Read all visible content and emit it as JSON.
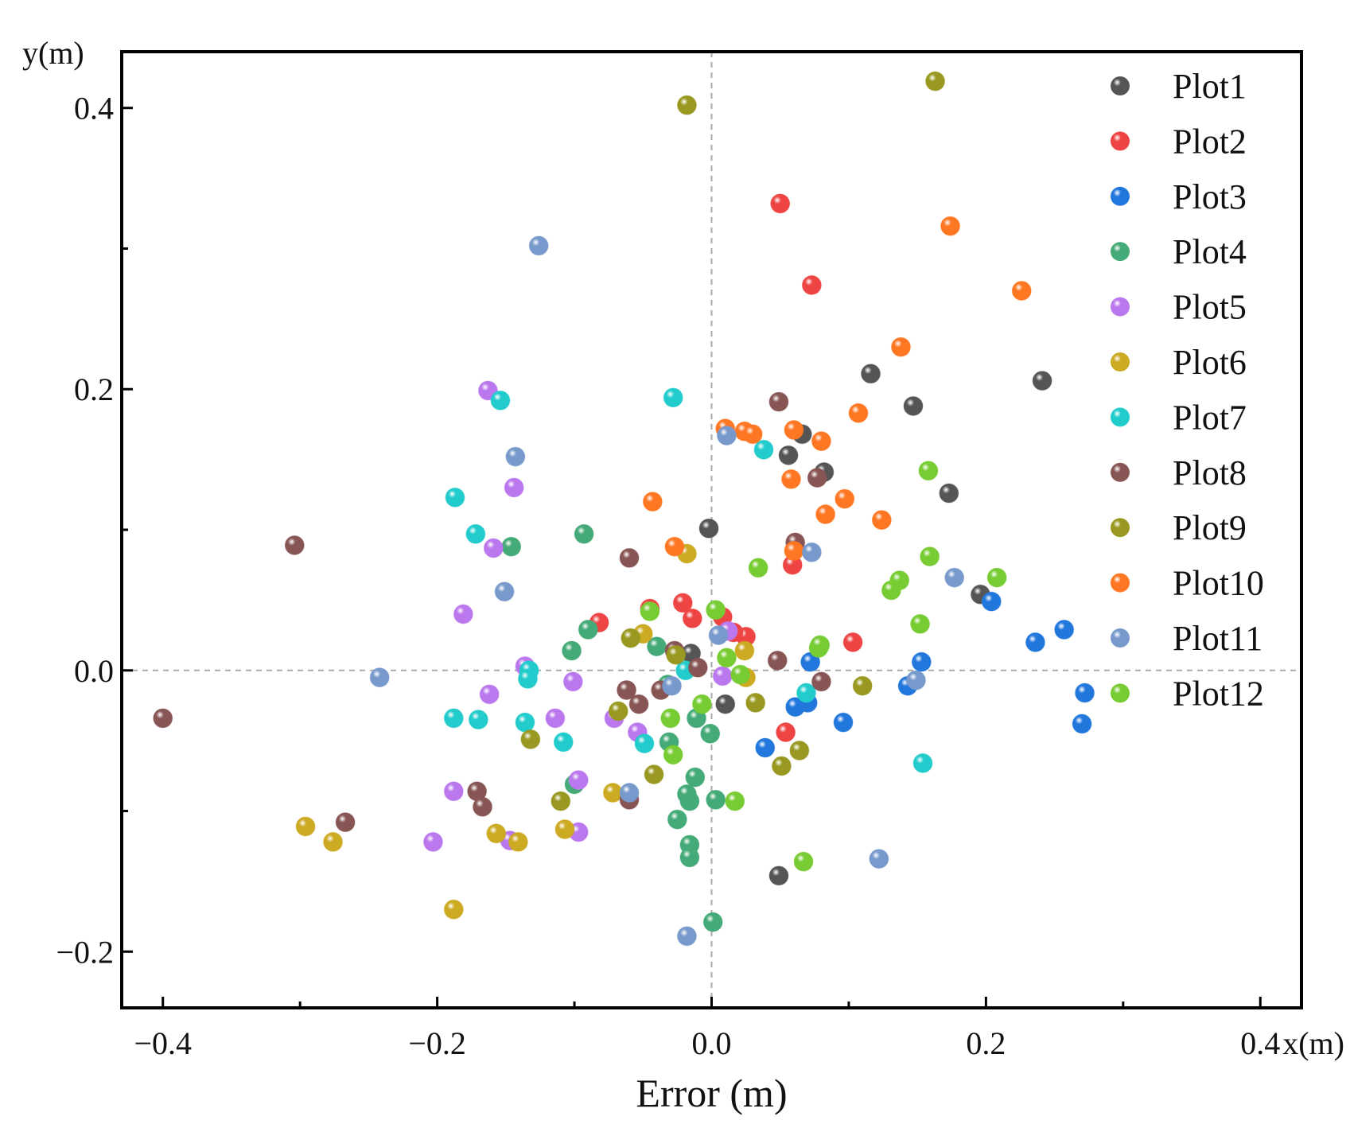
{
  "chart_data": {
    "type": "scatter",
    "title": "",
    "xlabel": "Error (m)",
    "ylabel": "",
    "x_unit_label": "x(m)",
    "y_unit_label": "y(m)",
    "xlim": [
      -0.43,
      0.43
    ],
    "ylim": [
      -0.24,
      0.44
    ],
    "x_ticks": [
      -0.4,
      -0.2,
      0.0,
      0.2,
      0.4
    ],
    "x_tick_labels": [
      "−0.4",
      "−0.2",
      "0.0",
      "0.2",
      "0.4"
    ],
    "y_ticks": [
      -0.2,
      0.0,
      0.2,
      0.4
    ],
    "y_tick_labels": [
      "−0.2",
      "0.0",
      "0.2",
      "0.4"
    ],
    "reference_lines": {
      "x": 0,
      "y": 0,
      "style": "dashed"
    },
    "grid": false,
    "legend_position": "top-right",
    "series": [
      {
        "name": "Plot1",
        "color": "#555555",
        "points": [
          [
            0.116,
            0.211
          ],
          [
            0.147,
            0.188
          ],
          [
            0.241,
            0.206
          ],
          [
            -0.002,
            0.101
          ],
          [
            0.173,
            0.126
          ],
          [
            0.056,
            0.153
          ],
          [
            0.066,
            0.168
          ],
          [
            0.082,
            0.141
          ],
          [
            0.196,
            0.054
          ],
          [
            -0.015,
            0.012
          ],
          [
            0.01,
            -0.024
          ],
          [
            0.049,
            -0.146
          ]
        ]
      },
      {
        "name": "Plot2",
        "color": "#ee4444",
        "points": [
          [
            0.05,
            0.332
          ],
          [
            0.073,
            0.274
          ],
          [
            0.059,
            0.075
          ],
          [
            -0.021,
            0.048
          ],
          [
            -0.014,
            0.037
          ],
          [
            0.008,
            0.038
          ],
          [
            0.025,
            0.024
          ],
          [
            0.016,
            0.027
          ],
          [
            -0.082,
            0.034
          ],
          [
            -0.045,
            0.044
          ],
          [
            0.103,
            0.02
          ],
          [
            0.054,
            -0.044
          ]
        ]
      },
      {
        "name": "Plot3",
        "color": "#2277dd",
        "points": [
          [
            0.204,
            0.049
          ],
          [
            0.257,
            0.029
          ],
          [
            0.236,
            0.02
          ],
          [
            0.153,
            0.006
          ],
          [
            0.072,
            0.006
          ],
          [
            0.272,
            -0.016
          ],
          [
            0.143,
            -0.011
          ],
          [
            0.07,
            -0.023
          ],
          [
            0.061,
            -0.026
          ],
          [
            0.096,
            -0.037
          ],
          [
            0.27,
            -0.038
          ],
          [
            0.039,
            -0.055
          ]
        ]
      },
      {
        "name": "Plot4",
        "color": "#44aa77",
        "points": [
          [
            -0.093,
            0.097
          ],
          [
            -0.146,
            0.088
          ],
          [
            -0.09,
            0.029
          ],
          [
            -0.102,
            0.014
          ],
          [
            -0.04,
            0.017
          ],
          [
            -0.032,
            -0.01
          ],
          [
            -0.011,
            -0.034
          ],
          [
            -0.001,
            -0.045
          ],
          [
            -0.031,
            -0.051
          ],
          [
            -0.1,
            -0.081
          ],
          [
            -0.012,
            -0.076
          ],
          [
            -0.016,
            -0.093
          ],
          [
            0.003,
            -0.092
          ],
          [
            -0.025,
            -0.106
          ],
          [
            -0.016,
            -0.124
          ],
          [
            -0.016,
            -0.133
          ],
          [
            0.001,
            -0.179
          ],
          [
            -0.018,
            -0.088
          ]
        ]
      },
      {
        "name": "Plot5",
        "color": "#bb77ee",
        "points": [
          [
            -0.163,
            0.199
          ],
          [
            -0.144,
            0.13
          ],
          [
            -0.159,
            0.087
          ],
          [
            -0.181,
            0.04
          ],
          [
            -0.136,
            0.003
          ],
          [
            -0.162,
            -0.017
          ],
          [
            -0.114,
            -0.034
          ],
          [
            -0.101,
            -0.008
          ],
          [
            -0.071,
            -0.034
          ],
          [
            -0.054,
            -0.044
          ],
          [
            0.008,
            -0.004
          ],
          [
            0.012,
            0.028
          ],
          [
            -0.097,
            -0.078
          ],
          [
            -0.188,
            -0.086
          ],
          [
            -0.203,
            -0.122
          ],
          [
            -0.147,
            -0.121
          ],
          [
            -0.097,
            -0.115
          ]
        ]
      },
      {
        "name": "Plot6",
        "color": "#ccaa22",
        "points": [
          [
            -0.018,
            0.083
          ],
          [
            -0.296,
            -0.111
          ],
          [
            -0.276,
            -0.122
          ],
          [
            -0.157,
            -0.116
          ],
          [
            -0.141,
            -0.122
          ],
          [
            -0.107,
            -0.113
          ],
          [
            -0.072,
            -0.087
          ],
          [
            -0.188,
            -0.17
          ],
          [
            -0.05,
            0.026
          ],
          [
            0.024,
            0.014
          ],
          [
            0.025,
            -0.005
          ]
        ]
      },
      {
        "name": "Plot7",
        "color": "#22cccc",
        "points": [
          [
            -0.154,
            0.192
          ],
          [
            -0.028,
            0.194
          ],
          [
            0.038,
            0.157
          ],
          [
            -0.187,
            0.123
          ],
          [
            -0.172,
            0.097
          ],
          [
            -0.133,
            0.0
          ],
          [
            -0.134,
            -0.006
          ],
          [
            -0.188,
            -0.034
          ],
          [
            -0.17,
            -0.035
          ],
          [
            -0.136,
            -0.037
          ],
          [
            -0.108,
            -0.051
          ],
          [
            -0.049,
            -0.052
          ],
          [
            0.154,
            -0.066
          ],
          [
            0.069,
            -0.016
          ],
          [
            -0.019,
            -0.0
          ]
        ]
      },
      {
        "name": "Plot8",
        "color": "#885555",
        "points": [
          [
            -0.304,
            0.089
          ],
          [
            -0.4,
            -0.034
          ],
          [
            -0.267,
            -0.108
          ],
          [
            -0.171,
            -0.086
          ],
          [
            -0.167,
            -0.097
          ],
          [
            -0.06,
            0.08
          ],
          [
            0.049,
            0.191
          ],
          [
            0.077,
            0.137
          ],
          [
            0.061,
            0.091
          ],
          [
            0.048,
            0.007
          ],
          [
            0.08,
            -0.008
          ],
          [
            -0.062,
            -0.014
          ],
          [
            -0.053,
            -0.024
          ],
          [
            -0.037,
            -0.014
          ],
          [
            -0.01,
            0.002
          ],
          [
            -0.06,
            -0.092
          ],
          [
            -0.027,
            0.014
          ]
        ]
      },
      {
        "name": "Plot9",
        "color": "#999922",
        "points": [
          [
            -0.018,
            0.402
          ],
          [
            0.163,
            0.419
          ],
          [
            -0.132,
            -0.049
          ],
          [
            -0.11,
            -0.093
          ],
          [
            -0.068,
            -0.029
          ],
          [
            -0.042,
            -0.074
          ],
          [
            0.032,
            -0.023
          ],
          [
            0.051,
            -0.068
          ],
          [
            0.064,
            -0.057
          ],
          [
            0.11,
            -0.011
          ],
          [
            -0.059,
            0.023
          ],
          [
            -0.026,
            0.011
          ]
        ]
      },
      {
        "name": "Plot10",
        "color": "#ff7722",
        "points": [
          [
            0.174,
            0.316
          ],
          [
            0.226,
            0.27
          ],
          [
            0.138,
            0.23
          ],
          [
            0.107,
            0.183
          ],
          [
            0.01,
            0.172
          ],
          [
            0.024,
            0.17
          ],
          [
            0.03,
            0.168
          ],
          [
            0.06,
            0.171
          ],
          [
            0.08,
            0.163
          ],
          [
            0.058,
            0.136
          ],
          [
            0.097,
            0.122
          ],
          [
            0.083,
            0.111
          ],
          [
            0.124,
            0.107
          ],
          [
            -0.043,
            0.12
          ],
          [
            -0.027,
            0.088
          ],
          [
            0.06,
            0.085
          ]
        ]
      },
      {
        "name": "Plot11",
        "color": "#7799cc",
        "points": [
          [
            -0.126,
            0.302
          ],
          [
            0.011,
            0.167
          ],
          [
            -0.143,
            0.152
          ],
          [
            -0.151,
            0.056
          ],
          [
            0.073,
            0.084
          ],
          [
            0.177,
            0.066
          ],
          [
            0.005,
            0.025
          ],
          [
            -0.242,
            -0.005
          ],
          [
            -0.029,
            -0.011
          ],
          [
            0.149,
            -0.007
          ],
          [
            -0.06,
            -0.087
          ],
          [
            0.122,
            -0.134
          ],
          [
            -0.018,
            -0.189
          ]
        ]
      },
      {
        "name": "Plot12",
        "color": "#77cc33",
        "points": [
          [
            0.158,
            0.142
          ],
          [
            0.159,
            0.081
          ],
          [
            0.137,
            0.064
          ],
          [
            0.131,
            0.057
          ],
          [
            0.208,
            0.066
          ],
          [
            0.152,
            0.033
          ],
          [
            0.034,
            0.073
          ],
          [
            0.003,
            0.043
          ],
          [
            -0.045,
            0.042
          ],
          [
            0.078,
            0.016
          ],
          [
            0.079,
            0.018
          ],
          [
            0.021,
            -0.003
          ],
          [
            0.011,
            0.009
          ],
          [
            -0.03,
            -0.034
          ],
          [
            -0.028,
            -0.06
          ],
          [
            -0.007,
            -0.024
          ],
          [
            0.017,
            -0.093
          ],
          [
            0.067,
            -0.136
          ]
        ]
      }
    ]
  }
}
